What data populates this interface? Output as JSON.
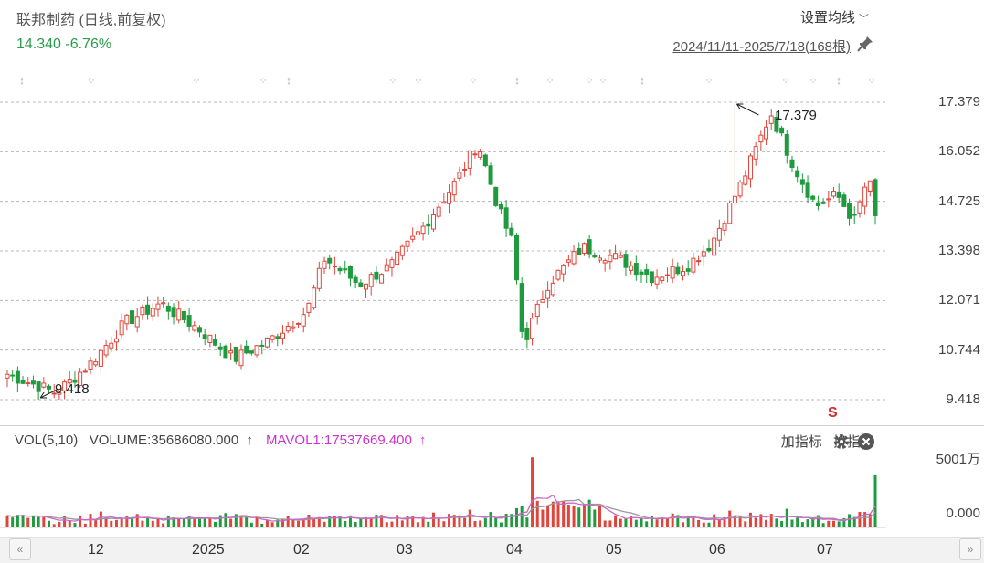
{
  "stock": {
    "title": "联邦制药 (日线,前复权)",
    "price_line": "14.340 -6.76%",
    "price_color": "#2a9d4a"
  },
  "toolbar": {
    "settings_label": "设置均线",
    "date_range": "2024/11/11-2025/7/18(168根)"
  },
  "price_axis": [
    "17.379",
    "16.052",
    "14.725",
    "13.398",
    "12.071",
    "10.744",
    "9.418"
  ],
  "annotations": {
    "high_label": "17.379",
    "low_label": "9.418"
  },
  "volume": {
    "legend_vol": "VOL(5,10)",
    "legend_volume": "VOLUME:35686080.000",
    "legend_mavol": "MAVOL1:17537669.400",
    "mavol_color": "#cc33cc",
    "axis_top": "5001万",
    "axis_bottom": "0.000",
    "add_indicator": "加指标",
    "switch_indicator": "换指标"
  },
  "time_axis": [
    "12",
    "2025",
    "02",
    "03",
    "04",
    "05",
    "06",
    "07"
  ],
  "colors": {
    "up": "#e0453b",
    "down": "#1f9a3e",
    "ma5": "#cc66cc",
    "ma10": "#999999"
  },
  "signal_mark": "S",
  "chart_data": {
    "type": "candlestick",
    "bars": 168,
    "ylim": [
      9.418,
      17.379
    ],
    "high": 17.379,
    "low": 9.418,
    "close_points": [
      [
        "2024-11-11",
        10.1
      ],
      [
        "2024-11-25",
        9.6
      ],
      [
        "2024-12-05",
        10.4
      ],
      [
        "2024-12-15",
        11.5
      ],
      [
        "2024-12-25",
        12.0
      ],
      [
        "2025-01-05",
        11.3
      ],
      [
        "2025-01-15",
        10.5
      ],
      [
        "2025-01-25",
        11.0
      ],
      [
        "2025-02-05",
        11.8
      ],
      [
        "2025-02-10",
        13.2
      ],
      [
        "2025-02-20",
        12.5
      ],
      [
        "2025-03-01",
        13.0
      ],
      [
        "2025-03-10",
        14.0
      ],
      [
        "2025-03-20",
        15.3
      ],
      [
        "2025-03-26",
        16.3
      ],
      [
        "2025-04-01",
        14.5
      ],
      [
        "2025-04-05",
        13.6
      ],
      [
        "2025-04-08",
        10.9
      ],
      [
        "2025-04-15",
        12.5
      ],
      [
        "2025-04-25",
        13.5
      ],
      [
        "2025-05-05",
        13.2
      ],
      [
        "2025-05-15",
        12.7
      ],
      [
        "2025-05-25",
        13.0
      ],
      [
        "2025-06-01",
        13.6
      ],
      [
        "2025-06-10",
        15.3
      ],
      [
        "2025-06-15",
        16.4
      ],
      [
        "2025-06-18",
        17.1
      ],
      [
        "2025-06-25",
        15.6
      ],
      [
        "2025-07-01",
        14.6
      ],
      [
        "2025-07-07",
        14.9
      ],
      [
        "2025-07-12",
        14.2
      ],
      [
        "2025-07-16",
        15.4
      ],
      [
        "2025-07-18",
        14.34
      ]
    ],
    "volume_ylim": [
      0,
      5001
    ],
    "volume_unit": "万"
  }
}
